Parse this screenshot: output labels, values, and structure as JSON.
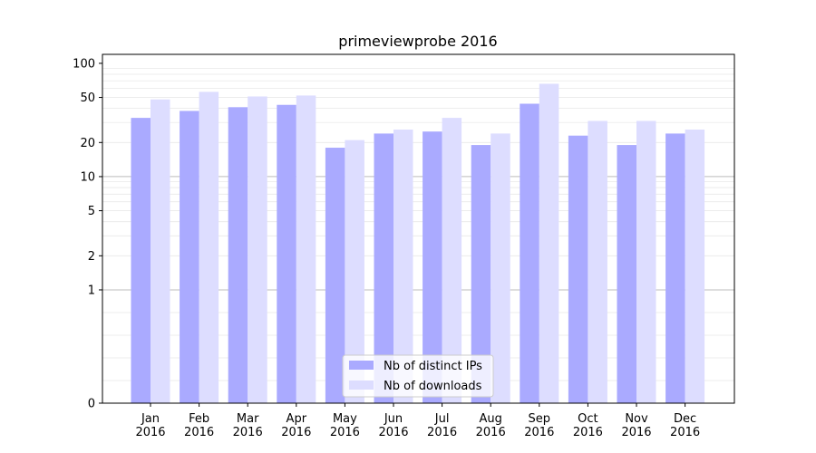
{
  "chart_data": {
    "type": "bar",
    "title": "primeviewprobe 2016",
    "xlabel": "",
    "ylabel": "",
    "yscale": "symlog",
    "ylim": [
      0,
      120
    ],
    "yticks": [
      0,
      1,
      2,
      5,
      10,
      20,
      50,
      100
    ],
    "grid": "horizontal",
    "legend_position": "bottom-center",
    "categories": [
      "Jan\n2016",
      "Feb\n2016",
      "Mar\n2016",
      "Apr\n2016",
      "May\n2016",
      "Jun\n2016",
      "Jul\n2016",
      "Aug\n2016",
      "Sep\n2016",
      "Oct\n2016",
      "Nov\n2016",
      "Dec\n2016"
    ],
    "series": [
      {
        "name": "Nb of distinct IPs",
        "color": "#aaaaff",
        "values": [
          33,
          38,
          41,
          43,
          18,
          24,
          25,
          19,
          44,
          23,
          19,
          24
        ]
      },
      {
        "name": "Nb of downloads",
        "color": "#ddddff",
        "values": [
          48,
          56,
          51,
          52,
          21,
          26,
          33,
          24,
          66,
          31,
          31,
          26
        ]
      }
    ]
  }
}
